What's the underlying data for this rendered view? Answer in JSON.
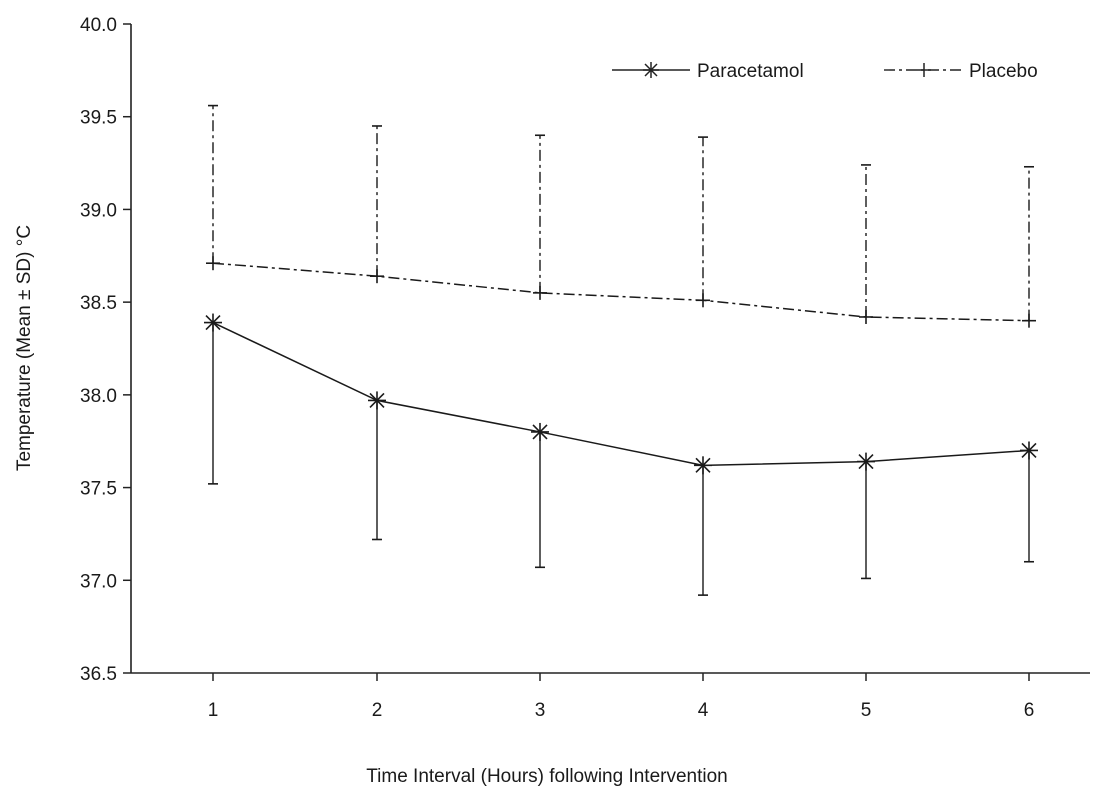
{
  "chart_data": {
    "type": "line",
    "title": "",
    "xlabel": "Time Interval (Hours) following Intervention",
    "ylabel": "Temperature (Mean ± SD) °C",
    "categories": [
      "1",
      "2",
      "3",
      "4",
      "5",
      "6"
    ],
    "x": [
      1,
      2,
      3,
      4,
      5,
      6
    ],
    "ylim": [
      36.5,
      40.0
    ],
    "y_ticks": [
      "36.5",
      "37.0",
      "37.5",
      "38.0",
      "38.5",
      "39.0",
      "39.5",
      "40.0"
    ],
    "y_tick_values": [
      36.5,
      37.0,
      37.5,
      38.0,
      38.5,
      39.0,
      39.5,
      40.0
    ],
    "grid": false,
    "legend_position": "top-right",
    "series": [
      {
        "name": "Paracetamol",
        "values": [
          38.39,
          37.97,
          37.8,
          37.62,
          37.64,
          37.7
        ],
        "sd": [
          0.87,
          0.75,
          0.73,
          0.7,
          0.63,
          0.6
        ],
        "error_direction": "down",
        "line_style": "solid",
        "marker": "asterisk",
        "color": "#1a1a1a"
      },
      {
        "name": "Placebo",
        "values": [
          38.71,
          38.64,
          38.55,
          38.51,
          38.42,
          38.4
        ],
        "sd": [
          0.85,
          0.81,
          0.85,
          0.88,
          0.82,
          0.83
        ],
        "error_direction": "up",
        "line_style": "dash-dot",
        "marker": "plus",
        "color": "#1a1a1a"
      }
    ]
  }
}
